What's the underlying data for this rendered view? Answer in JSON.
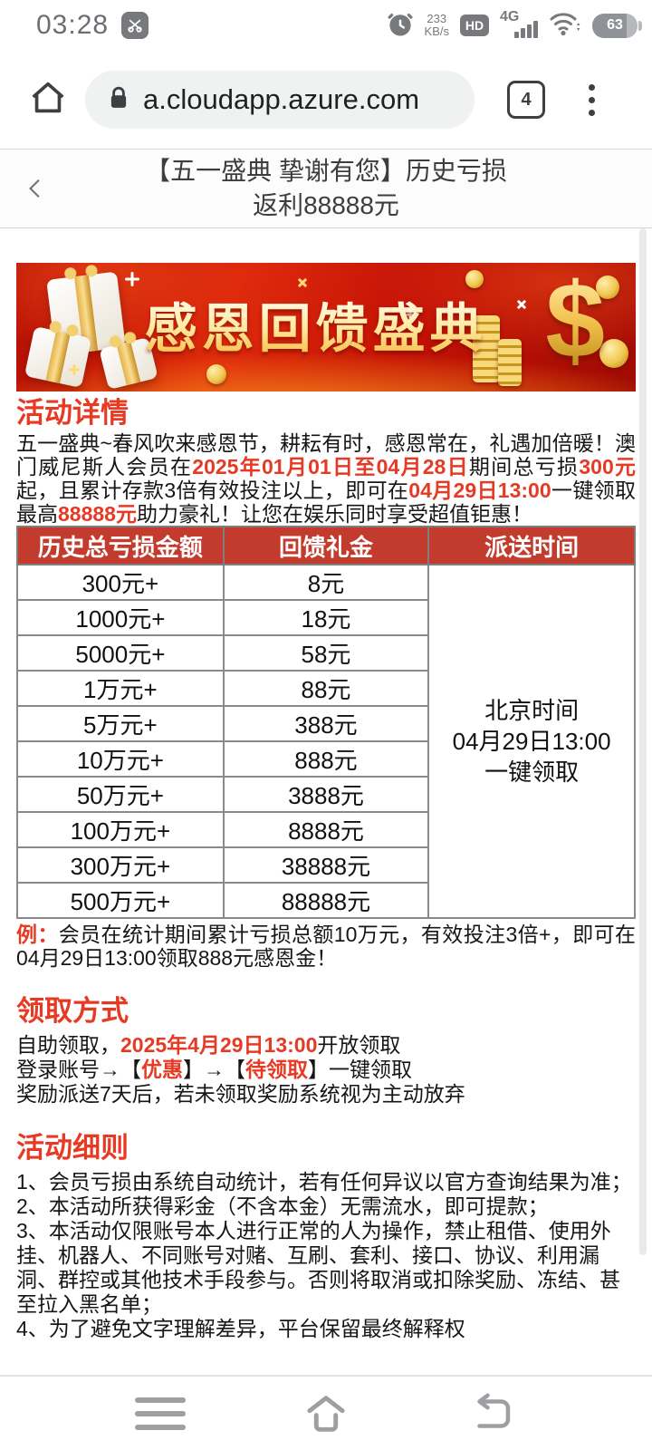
{
  "status_bar": {
    "time": "03:28",
    "download_speed": "233",
    "speed_unit": "KB/s",
    "hd_label": "HD",
    "network_label": "4G",
    "battery_percent": "63",
    "icons": [
      "screenshot-clip-icon",
      "alarm-clock-icon",
      "hd-badge-icon",
      "signal-bars-icon",
      "wifi-icon",
      "battery-icon"
    ]
  },
  "browser": {
    "url": "a.cloudapp.azure.com",
    "tab_count": "4",
    "icons": [
      "home-icon",
      "lock-icon",
      "tab-count-box",
      "menu-dots-icon"
    ]
  },
  "page_header": {
    "title_line1": "【五一盛典 挚谢有您】历史亏损",
    "title_line2": "返利88888元",
    "icons": [
      "back-chevron-icon"
    ]
  },
  "banner": {
    "title": "感恩回馈盛典",
    "dollar_sign": "$",
    "icons": [
      "gift-box-icon",
      "coin-stack-icon",
      "dollar-sign-icon",
      "sparkle-icon"
    ]
  },
  "colors": {
    "accent_red": "#e73a24",
    "table_header_red": "#c23b2c",
    "banner_gold": "#ffe9a0"
  },
  "details": {
    "heading": "活动详情",
    "paragraph": [
      {
        "t": "五一盛典~春风吹来感恩节，耕耘有时，感恩常在，礼遇加倍暖！澳门威尼斯人会员在"
      },
      {
        "t": "2025年01月01日至04月28日",
        "red": true
      },
      {
        "t": "期间总亏损"
      },
      {
        "t": "300元",
        "red": true
      },
      {
        "t": "起，且累计存款3倍有效投注以上，即可在"
      },
      {
        "t": "04月29日13:00",
        "red": true
      },
      {
        "t": "一键领取最高"
      },
      {
        "t": "88888元",
        "red": true
      },
      {
        "t": "助力豪礼！让您在娱乐同时享受超值钜惠！"
      }
    ]
  },
  "table": {
    "headers": [
      "历史总亏损金额",
      "回馈礼金",
      "派送时间"
    ],
    "rows": [
      [
        "300元+",
        "8元"
      ],
      [
        "1000元+",
        "18元"
      ],
      [
        "5000元+",
        "58元"
      ],
      [
        "1万元+",
        "88元"
      ],
      [
        "5万元+",
        "388元"
      ],
      [
        "10万元+",
        "888元"
      ],
      [
        "50万元+",
        "3888元"
      ],
      [
        "100万元+",
        "8888元"
      ],
      [
        "300万元+",
        "38888元"
      ],
      [
        "500万元+",
        "88888元"
      ]
    ],
    "delivery_lines": [
      "北京时间",
      "04月29日13:00",
      "一键领取"
    ]
  },
  "example": {
    "segments": [
      {
        "t": "例：",
        "red": true
      },
      {
        "t": "会员在统计期间累计亏损总额10万元，有效投注3倍+，即可在04月29日13:00领取888元感恩金！"
      }
    ]
  },
  "claim": {
    "heading": "领取方式",
    "lines": [
      [
        {
          "t": "自助领取，"
        },
        {
          "t": "2025年4月29日13:00",
          "red": true
        },
        {
          "t": "开放领取"
        }
      ],
      [
        {
          "t": "登录账号→【"
        },
        {
          "t": "优惠",
          "red": true
        },
        {
          "t": "】→【"
        },
        {
          "t": "待领取",
          "red": true
        },
        {
          "t": "】一键领取"
        }
      ],
      [
        {
          "t": "奖励派送7天后，若未领取奖励系统视为主动放弃"
        }
      ]
    ]
  },
  "rules": {
    "heading": "活动细则",
    "items": [
      "1、会员亏损由系统自动统计，若有任何异议以官方查询结果为准；",
      "2、本活动所获得彩金（不含本金）无需流水，即可提款；",
      "3、本活动仅限账号本人进行正常的人为操作，禁止租借、使用外挂、机器人、不同账号对赌、互刷、套利、接口、协议、利用漏洞、群控或其他技术手段参与。否则将取消或扣除奖励、冻结、甚至拉入黑名单；",
      "4、为了避免文字理解差异，平台保留最终解释权"
    ]
  },
  "nav": {
    "icons": [
      "recents-icon",
      "home-icon",
      "back-icon"
    ]
  }
}
